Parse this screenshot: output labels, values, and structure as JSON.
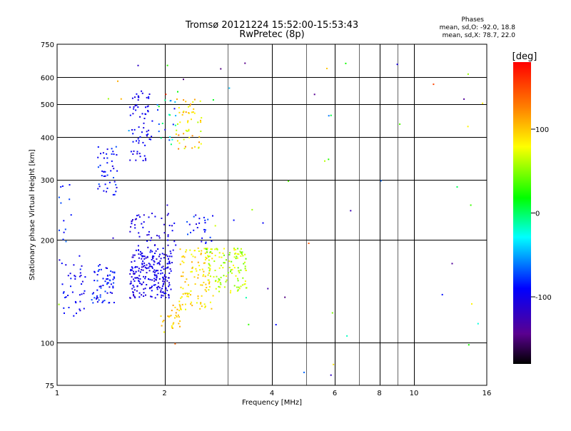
{
  "chart_data": {
    "type": "scatter",
    "title": "Tromsø 20121224 15:52:00-15:53:43",
    "subtitle": "RwPretec (8p)",
    "xlabel": "Frequency [MHz]",
    "ylabel": "Stationary phase Virtual Height [km]",
    "x_scale": "log",
    "y_scale": "log",
    "xlim": [
      1,
      16
    ],
    "ylim": [
      75,
      750
    ],
    "x_ticks": [
      1,
      2,
      4,
      6,
      8,
      10,
      16
    ],
    "x_tick_labels": [
      "1",
      "2",
      "4",
      "6",
      "8",
      "10",
      "16"
    ],
    "x_minor_ticks": [
      3,
      5,
      7,
      9
    ],
    "y_ticks": [
      75,
      100,
      200,
      300,
      400,
      500,
      600,
      750
    ],
    "y_tick_labels": [
      "75",
      "100",
      "200",
      "300",
      "400",
      "500",
      "600",
      "750"
    ],
    "grid": true,
    "phases_info": {
      "title": "Phases",
      "line1": "mean, sd,O: -92.0, 18.8",
      "line2": "mean, sd,X:  78.7, 22.0"
    },
    "colorbar": {
      "label": "[deg]",
      "range": [
        -180,
        180
      ],
      "ticks": [
        100,
        0,
        -100
      ],
      "tick_labels": [
        "100",
        "0",
        "-100"
      ],
      "colormap": [
        "#000000",
        "#5a0090",
        "#0000ff",
        "#00ffff",
        "#00ff00",
        "#ffff00",
        "#ff8000",
        "#ff0000"
      ]
    },
    "clusters": [
      {
        "fmin": 1.0,
        "fmax": 1.2,
        "hmin": 115,
        "hmax": 180,
        "n": 45,
        "pmin": -110,
        "pmax": -80
      },
      {
        "fmin": 1.0,
        "fmax": 1.12,
        "hmin": 200,
        "hmax": 340,
        "n": 12,
        "pmin": -100,
        "pmax": -70
      },
      {
        "fmin": 1.25,
        "fmax": 1.45,
        "hmin": 130,
        "hmax": 170,
        "n": 65,
        "pmin": -110,
        "pmax": -70
      },
      {
        "fmin": 1.3,
        "fmax": 1.48,
        "hmin": 270,
        "hmax": 380,
        "n": 45,
        "pmin": -105,
        "pmax": -70
      },
      {
        "fmin": 1.6,
        "fmax": 2.1,
        "hmin": 135,
        "hmax": 185,
        "n": 230,
        "pmin": -115,
        "pmax": -90
      },
      {
        "fmin": 1.6,
        "fmax": 2.15,
        "hmin": 185,
        "hmax": 240,
        "n": 60,
        "pmin": -115,
        "pmax": -90
      },
      {
        "fmin": 1.6,
        "fmax": 1.85,
        "hmin": 340,
        "hmax": 550,
        "n": 70,
        "pmin": -110,
        "pmax": -85
      },
      {
        "fmin": 1.9,
        "fmax": 2.15,
        "hmin": 380,
        "hmax": 520,
        "n": 22,
        "pmin": -105,
        "pmax": 20
      },
      {
        "fmin": 2.15,
        "fmax": 2.55,
        "hmin": 370,
        "hmax": 520,
        "n": 55,
        "pmin": 60,
        "pmax": 130
      },
      {
        "fmin": 1.95,
        "fmax": 2.25,
        "hmin": 110,
        "hmax": 130,
        "n": 30,
        "pmin": 80,
        "pmax": 120
      },
      {
        "fmin": 2.2,
        "fmax": 2.75,
        "hmin": 125,
        "hmax": 190,
        "n": 110,
        "pmin": 70,
        "pmax": 110
      },
      {
        "fmin": 2.6,
        "fmax": 3.4,
        "hmin": 140,
        "hmax": 190,
        "n": 120,
        "pmin": 40,
        "pmax": 85
      },
      {
        "fmin": 2.3,
        "fmax": 2.75,
        "hmin": 195,
        "hmax": 240,
        "n": 25,
        "pmin": -110,
        "pmax": -70
      },
      {
        "fmin": 1.0,
        "fmax": 16.0,
        "hmin": 78,
        "hmax": 700,
        "n": 60,
        "pmin": -150,
        "pmax": 160
      }
    ]
  }
}
